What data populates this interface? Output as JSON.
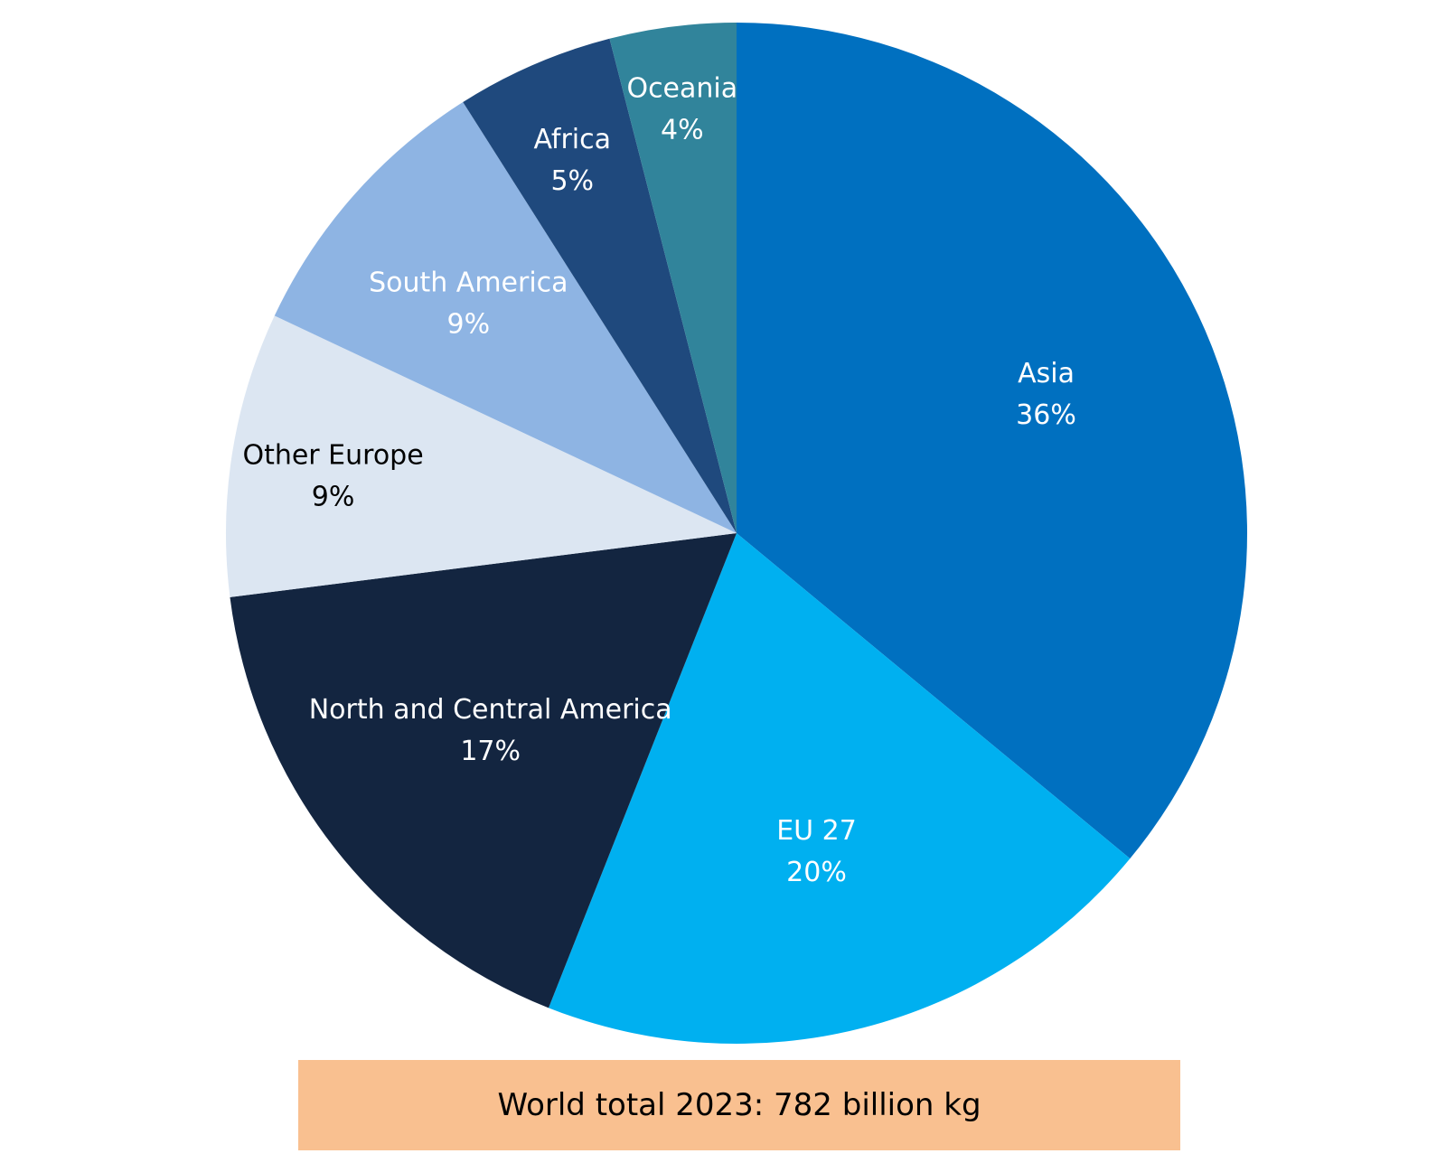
{
  "chart_data": {
    "type": "pie",
    "slices": [
      {
        "label": "Asia",
        "value": 36,
        "value_label": "36%",
        "color": "#0070c0",
        "text_color": "#ffffff"
      },
      {
        "label": "EU 27",
        "value": 20,
        "value_label": "20%",
        "color": "#00b0f0",
        "text_color": "#ffffff"
      },
      {
        "label": "North and Central America",
        "value": 17,
        "value_label": "17%",
        "color": "#132540",
        "text_color": "#ffffff"
      },
      {
        "label": "Other Europe",
        "value": 9,
        "value_label": "9%",
        "color": "#dce6f2",
        "text_color": "#000000"
      },
      {
        "label": "South America",
        "value": 9,
        "value_label": "9%",
        "color": "#8eb4e3",
        "text_color": "#ffffff"
      },
      {
        "label": "Africa",
        "value": 5,
        "value_label": "5%",
        "color": "#1f497d",
        "text_color": "#ffffff"
      },
      {
        "label": "Oceania",
        "value": 4,
        "value_label": "4%",
        "color": "#31849b",
        "text_color": "#ffffff"
      }
    ],
    "start": "12 o'clock",
    "direction": "clockwise"
  },
  "footer": {
    "total_text": "World total 2023: 782 billion kg",
    "background": "#f9c090"
  }
}
